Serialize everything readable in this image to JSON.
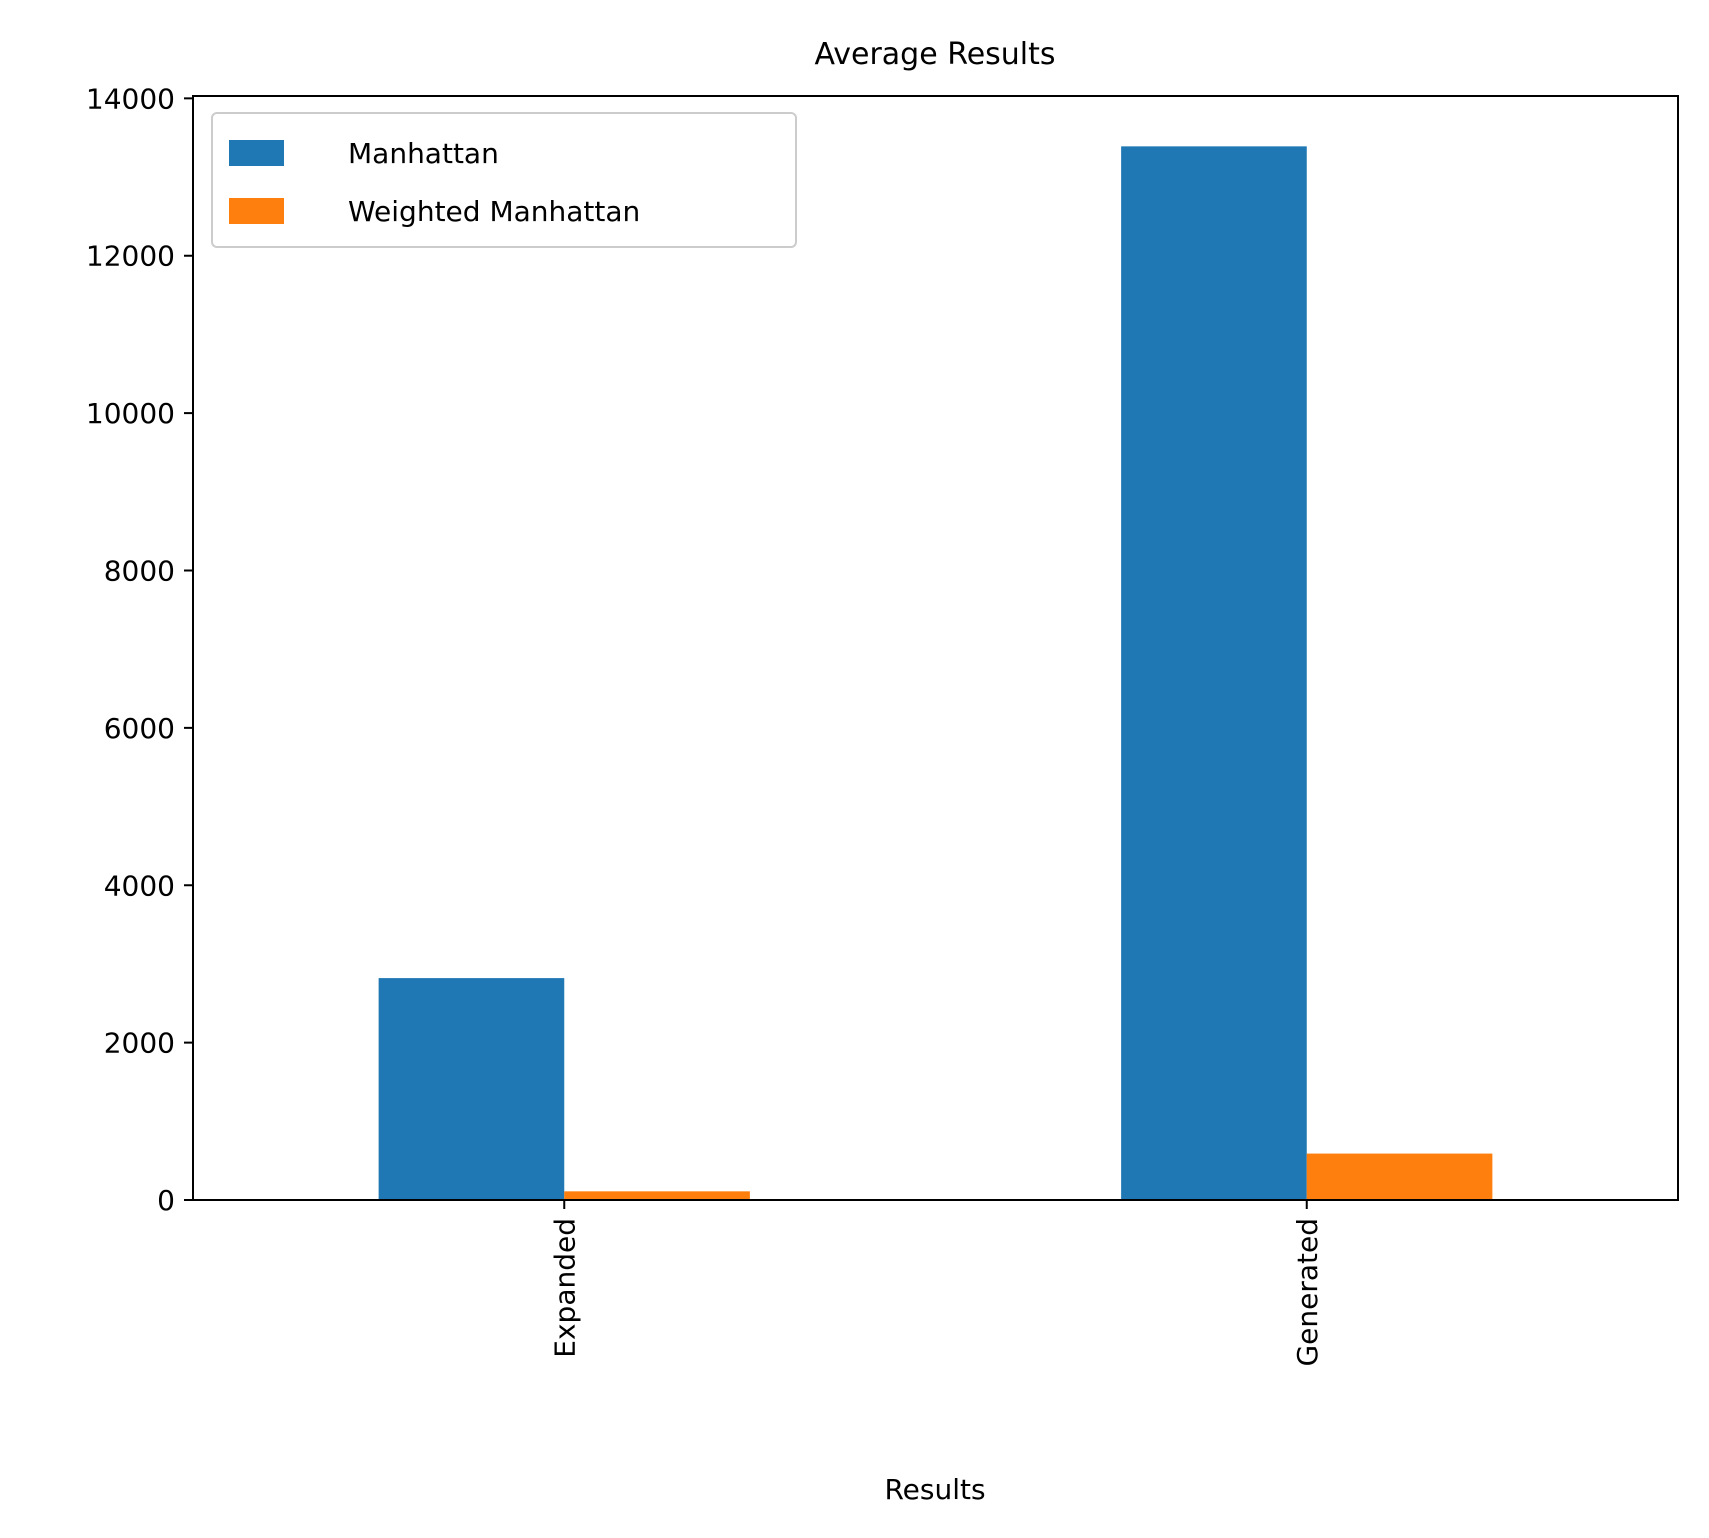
{
  "chart_data": {
    "type": "bar",
    "title": "Average Results",
    "xlabel": "Results",
    "ylabel": "",
    "categories": [
      "Expanded",
      "Generated"
    ],
    "series": [
      {
        "name": "Manhattan",
        "values": [
          2820,
          13390
        ],
        "color": "#1f77b4"
      },
      {
        "name": "Weighted Manhattan",
        "values": [
          110,
          590
        ],
        "color": "#ff7f0e"
      }
    ],
    "ylim": [
      0,
      14030
    ],
    "yticks": [
      0,
      2000,
      4000,
      6000,
      8000,
      10000,
      12000,
      14000
    ],
    "ytick_labels": [
      "0",
      "2000",
      "4000",
      "6000",
      "8000",
      "10000",
      "12000",
      "14000"
    ],
    "xtick_rotation": "vertical",
    "grid": false,
    "legend_placement": "upper-left"
  }
}
